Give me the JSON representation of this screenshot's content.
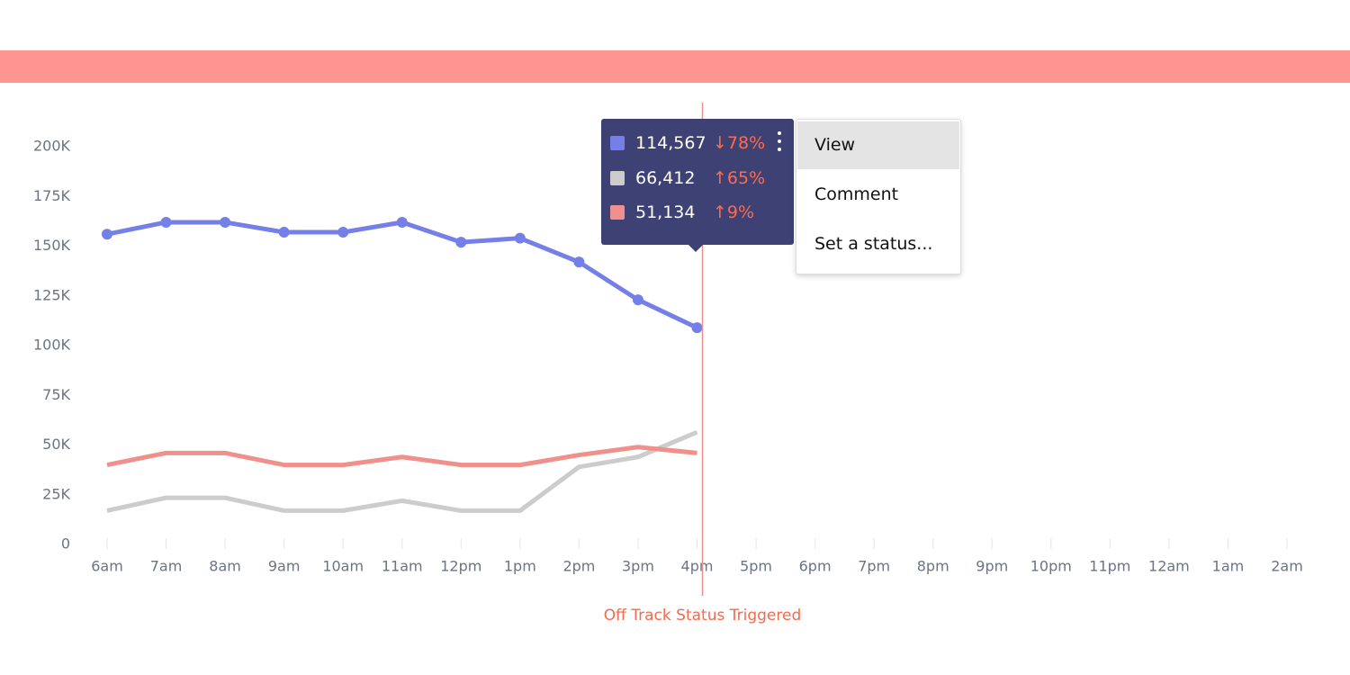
{
  "chart_data": {
    "type": "line",
    "categories": [
      "6am",
      "7am",
      "8am",
      "9am",
      "10am",
      "11am",
      "12pm",
      "1pm",
      "2pm",
      "3pm",
      "4pm",
      "5pm",
      "6pm",
      "7pm",
      "8pm",
      "9pm",
      "10pm",
      "11pm",
      "12am",
      "1am",
      "2am"
    ],
    "series": [
      {
        "color": "#7480e8",
        "markers": true,
        "values": [
          156000,
          162000,
          162000,
          157000,
          157000,
          162000,
          152000,
          154000,
          142000,
          123000,
          109000,
          null,
          null,
          null,
          null,
          null,
          null,
          null,
          null,
          null,
          null
        ]
      },
      {
        "color": "#cccccc",
        "markers": false,
        "values": [
          17000,
          23500,
          23500,
          17000,
          17000,
          22000,
          17000,
          17000,
          39000,
          44000,
          56500,
          null,
          null,
          null,
          null,
          null,
          null,
          null,
          null,
          null,
          null
        ]
      },
      {
        "color": "#f0908c",
        "markers": false,
        "values": [
          40000,
          46000,
          46000,
          40000,
          40000,
          44000,
          40000,
          40000,
          45000,
          49000,
          46000,
          null,
          null,
          null,
          null,
          null,
          null,
          null,
          null,
          null,
          null
        ]
      }
    ],
    "ylim": [
      0,
      200000
    ],
    "yticks": [
      0,
      {
        "value": 25000,
        "label": "25K"
      },
      {
        "value": 50000,
        "label": "50K"
      },
      {
        "value": 75000,
        "label": "75K"
      },
      {
        "value": 100000,
        "label": "100K"
      },
      {
        "value": 125000,
        "label": "125K"
      },
      {
        "value": 150000,
        "label": "150K"
      },
      {
        "value": 175000,
        "label": "175K"
      },
      {
        "value": 200000,
        "label": "200K"
      }
    ],
    "annotation": {
      "text": "Off Track Status Triggered",
      "color": "#f0908c"
    }
  },
  "tooltip": {
    "rows": [
      {
        "color": "#7480e8",
        "value": "114,567",
        "change": "↓78%"
      },
      {
        "color": "#cccccc",
        "value": "66,412",
        "change": "↑65%"
      },
      {
        "color": "#f0908c",
        "value": "51,134",
        "change": "↑9%"
      }
    ]
  },
  "menu": {
    "items": [
      "View",
      "Comment",
      "Set a status..."
    ]
  }
}
